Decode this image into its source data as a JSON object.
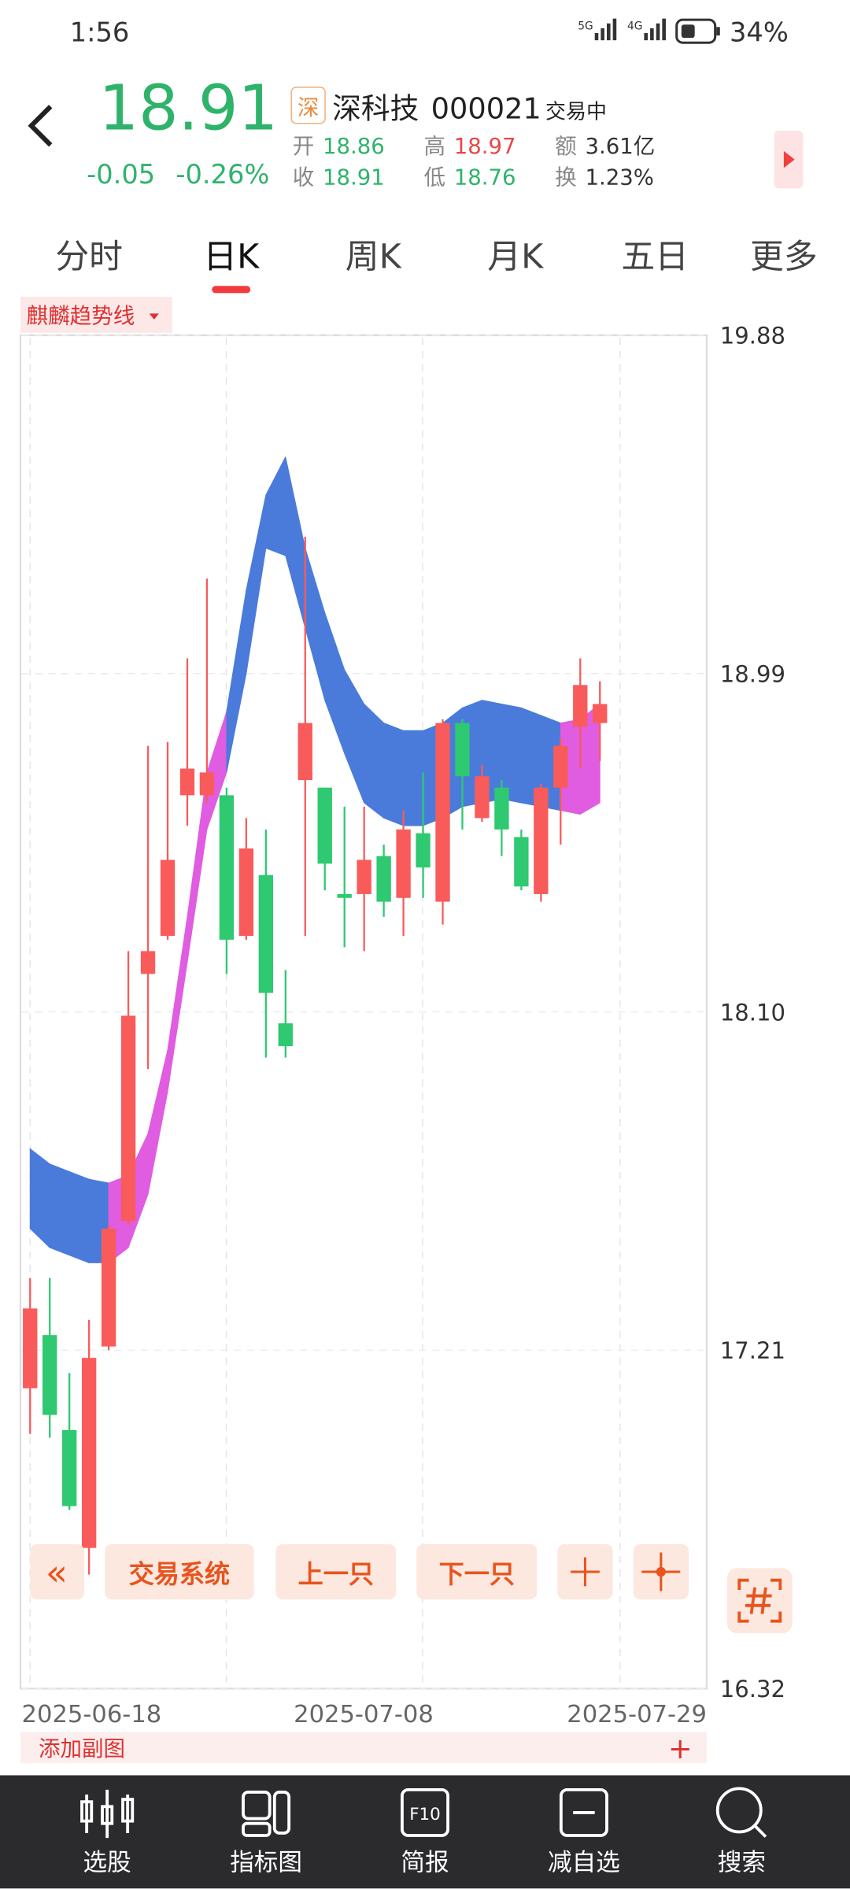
{
  "status_bar": {
    "time": "1:56",
    "net1": "5G",
    "net2": "4G",
    "battery": "34%"
  },
  "header": {
    "price": "18.91",
    "change": "-0.05",
    "change_pct": "-0.26%",
    "market": "深",
    "name": "深科技",
    "code": "000021",
    "state": "交易中",
    "stats": [
      {
        "label": "开",
        "value": "18.86"
      },
      {
        "label": "高",
        "value": "18.97"
      },
      {
        "label": "额",
        "value": "3.61亿"
      },
      {
        "label": "收",
        "value": "18.91"
      },
      {
        "label": "低",
        "value": "18.76"
      },
      {
        "label": "换",
        "value": "1.23%"
      }
    ]
  },
  "tabs": [
    "分时",
    "日K",
    "周K",
    "月K",
    "五日",
    "更多"
  ],
  "chart_data": {
    "type": "candlestick",
    "indicator": "麒麟趋势线",
    "ylim": [
      16.32,
      19.88
    ],
    "yticks": [
      16.32,
      17.21,
      {
        "value": 18.1,
        "label": "18.10"
      },
      18.99,
      19.88
    ],
    "x_labels": [
      "2025-06-18",
      "2025-07-08",
      "2025-07-29"
    ],
    "up_color": "#f95b5b",
    "down_color": "#2ec970",
    "open": [
      17.11,
      17.25,
      17.0,
      16.69,
      17.22,
      17.55,
      18.2,
      18.3,
      18.67,
      18.67,
      18.67,
      18.3,
      18.46,
      18.07,
      18.71,
      18.69,
      18.41,
      18.41,
      18.51,
      18.4,
      18.57,
      18.39,
      18.86,
      18.61,
      18.69,
      18.56,
      18.41,
      18.69,
      18.85,
      18.86
    ],
    "high": [
      17.4,
      17.4,
      17.15,
      17.29,
      17.54,
      18.26,
      18.8,
      18.81,
      19.03,
      19.24,
      18.69,
      18.61,
      18.58,
      18.21,
      19.35,
      18.69,
      18.64,
      18.64,
      18.54,
      18.63,
      18.73,
      18.87,
      18.87,
      18.75,
      18.71,
      18.58,
      18.7,
      18.82,
      19.03,
      18.97
    ],
    "low": [
      16.99,
      16.98,
      16.79,
      16.62,
      17.21,
      17.54,
      17.95,
      18.29,
      18.59,
      18.65,
      18.2,
      18.29,
      17.98,
      17.98,
      18.3,
      18.42,
      18.27,
      18.26,
      18.35,
      18.3,
      18.4,
      18.33,
      18.58,
      18.6,
      18.51,
      18.42,
      18.39,
      18.54,
      18.74,
      18.76
    ],
    "close": [
      17.32,
      17.04,
      16.8,
      17.19,
      17.53,
      18.09,
      18.26,
      18.5,
      18.74,
      18.73,
      18.29,
      18.53,
      18.15,
      18.01,
      18.86,
      18.49,
      18.4,
      18.5,
      18.39,
      18.58,
      18.48,
      18.86,
      18.72,
      18.72,
      18.58,
      18.43,
      18.69,
      18.8,
      18.96,
      18.91
    ],
    "band": {
      "upper": [
        17.74,
        17.7,
        17.68,
        17.66,
        17.65,
        17.67,
        17.78,
        18.0,
        18.35,
        18.73,
        18.89,
        19.21,
        19.46,
        19.56,
        19.32,
        19.15,
        19.0,
        18.91,
        18.86,
        18.84,
        18.84,
        18.86,
        18.9,
        18.92,
        18.91,
        18.9,
        18.88,
        18.86,
        18.87,
        18.91
      ],
      "lower": [
        17.53,
        17.48,
        17.46,
        17.44,
        17.44,
        17.48,
        17.62,
        17.89,
        18.23,
        18.58,
        18.73,
        18.99,
        19.32,
        19.3,
        19.11,
        18.92,
        18.78,
        18.65,
        18.61,
        18.59,
        18.59,
        18.61,
        18.64,
        18.65,
        18.66,
        18.65,
        18.64,
        18.63,
        18.62,
        18.65
      ],
      "colors": [
        "#4a7bdb",
        "#4a7bdb",
        "#4a7bdb",
        "#4a7bdb",
        "#4a7bdb",
        "#e05ce0",
        "#e05ce0",
        "#e05ce0",
        "#e05ce0",
        "#e05ce0",
        "#e05ce0",
        "#4a7bdb",
        "#4a7bdb",
        "#4a7bdb",
        "#4a7bdb",
        "#4a7bdb",
        "#4a7bdb",
        "#4a7bdb",
        "#4a7bdb",
        "#4a7bdb",
        "#4a7bdb",
        "#4a7bdb",
        "#4a7bdb",
        "#4a7bdb",
        "#4a7bdb",
        "#4a7bdb",
        "#4a7bdb",
        "#4a7bdb",
        "#e05ce0",
        "#e05ce0"
      ]
    }
  },
  "toolbar": {
    "prev_all": "«",
    "system": "交易系统",
    "prev": "上一只",
    "next": "下一只"
  },
  "sub_chart": {
    "add": "添加副图",
    "plus": "+"
  },
  "nav": [
    {
      "label": "选股"
    },
    {
      "label": "指标图"
    },
    {
      "label": "简报",
      "icon": "F10"
    },
    {
      "label": "减自选"
    },
    {
      "label": "搜索"
    }
  ]
}
